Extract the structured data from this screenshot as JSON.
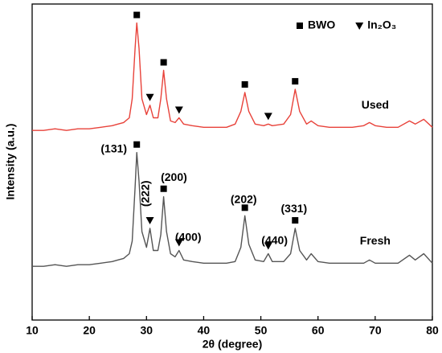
{
  "chart_data": {
    "type": "line",
    "xlabel": "2θ (degree)",
    "ylabel": "Intensity (a.u.)",
    "x": [
      10,
      12,
      14,
      16,
      18,
      20,
      22,
      24,
      25,
      26,
      27,
      27.5,
      28,
      28.3,
      28.7,
      29.2,
      30,
      30.6,
      31.2,
      32,
      32.5,
      33,
      33.5,
      34.2,
      35,
      35.7,
      36.5,
      38,
      40,
      42,
      44,
      45.5,
      46.5,
      47.2,
      47.9,
      49,
      50.5,
      51.3,
      52,
      54,
      55.2,
      56,
      56.8,
      58,
      58.8,
      60,
      62,
      64,
      66,
      68,
      69,
      70,
      72,
      74,
      76,
      77,
      78.5,
      80
    ],
    "series": [
      {
        "name": "Used",
        "color": "#e8423a",
        "values": [
          60,
          60,
          60.5,
          60,
          60.5,
          60.5,
          61,
          61.5,
          62,
          62.5,
          64,
          70,
          86,
          94,
          86,
          70,
          65,
          68,
          64,
          64,
          70,
          79,
          70,
          63,
          62.5,
          64,
          62,
          61.5,
          61,
          61,
          61,
          62,
          66,
          72,
          66,
          62,
          61.5,
          62,
          61.5,
          62,
          65,
          73,
          66,
          62,
          63,
          61.5,
          61,
          61,
          61,
          61.5,
          62.5,
          61.5,
          61,
          61,
          63,
          62,
          63.5,
          61
        ]
      },
      {
        "name": "Fresh",
        "color": "#555555",
        "values": [
          17,
          17,
          17.5,
          17,
          17.5,
          17.5,
          18,
          18.5,
          19,
          19.5,
          21,
          25,
          42,
          53,
          44,
          28,
          23,
          29,
          22,
          22,
          27,
          39,
          28,
          21,
          20,
          22,
          19,
          18.5,
          18,
          18,
          18,
          18.5,
          23,
          33,
          24,
          19,
          18.5,
          21,
          18.5,
          18.5,
          21,
          29,
          22,
          19,
          21,
          18.5,
          18,
          18,
          18,
          18,
          19,
          18,
          18,
          18,
          20.5,
          19,
          21,
          18
        ]
      }
    ],
    "xlim": [
      10,
      80
    ],
    "xticks": [
      10,
      20,
      30,
      40,
      50,
      60,
      70,
      80
    ],
    "ylim": [
      0,
      100
    ],
    "phases": [
      {
        "name": "BWO",
        "symbol": "square",
        "peaks": [
          28.3,
          33,
          47.2,
          56
        ]
      },
      {
        "name": "In₂O₃",
        "symbol": "triangle",
        "peaks": [
          30.6,
          35.7,
          51.3
        ]
      }
    ],
    "annotations": [
      {
        "text": "(131)",
        "x": 24.3,
        "y": 54
      },
      {
        "text": "(222)",
        "x": 29.9,
        "y": 40,
        "vertical": true
      },
      {
        "text": "(200)",
        "x": 34.8,
        "y": 45
      },
      {
        "text": "(400)",
        "x": 37.3,
        "y": 26
      },
      {
        "text": "(202)",
        "x": 47.0,
        "y": 38
      },
      {
        "text": "(440)",
        "x": 52.4,
        "y": 25
      },
      {
        "text": "(331)",
        "x": 55.8,
        "y": 35
      }
    ]
  }
}
